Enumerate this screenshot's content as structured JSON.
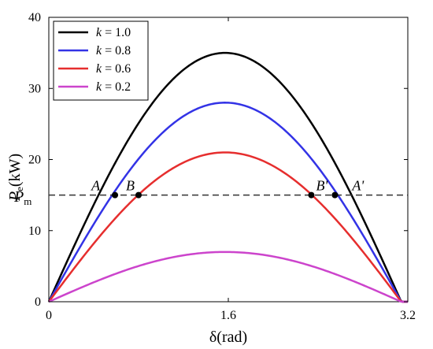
{
  "chart_data": {
    "type": "line",
    "title": "",
    "xlabel": "δ(rad)",
    "ylabel": {
      "main": "P",
      "sub": "e",
      "unit": "(kW)"
    },
    "xlim": [
      0,
      3.2
    ],
    "ylim": [
      0,
      40
    ],
    "xticks": [
      "0",
      "1.6",
      "3.2"
    ],
    "yticks": [
      "0",
      "10",
      "20",
      "30",
      "40"
    ],
    "grid": false,
    "legend_position": "top-left",
    "series": [
      {
        "name": "k = 1.0",
        "legend_k": "k",
        "legend_value": "= 1.0",
        "amplitude": 35,
        "color": "#000000"
      },
      {
        "name": "k = 0.8",
        "legend_k": "k",
        "legend_value": "= 0.8",
        "amplitude": 28,
        "color": "#3333e6"
      },
      {
        "name": "k = 0.6",
        "legend_k": "k",
        "legend_value": "= 0.6",
        "amplitude": 21,
        "color": "#e62e2e"
      },
      {
        "name": "k = 0.2",
        "legend_k": "k",
        "legend_value": "= 0.2",
        "amplitude": 7,
        "color": "#cc44cc"
      }
    ],
    "curve_shape": "P = A·sin(δ), δ ∈ [0, 3.2]",
    "reference_line": {
      "label_main": "P",
      "label_sub": "m",
      "y": 15,
      "style": "dashed",
      "color": "#333333"
    },
    "points": [
      {
        "label": "A",
        "x": 0.59,
        "y": 15
      },
      {
        "label": "B",
        "x": 0.8,
        "y": 15
      },
      {
        "label": "B'",
        "x": 2.34,
        "y": 15
      },
      {
        "label": "A'",
        "x": 2.55,
        "y": 15
      }
    ]
  }
}
